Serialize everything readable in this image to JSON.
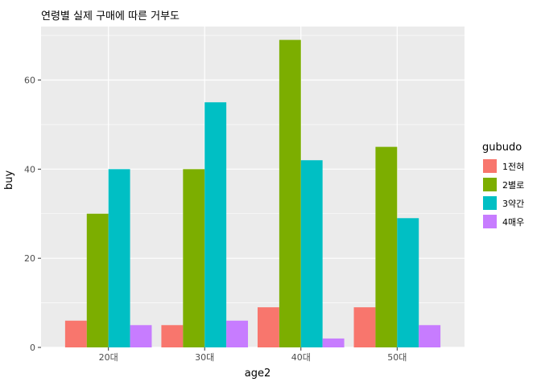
{
  "chart_data": {
    "type": "bar",
    "title": "연령별 실제 구매에 따른 거부도",
    "xlabel": "age2",
    "ylabel": "buy",
    "categories": [
      "20대",
      "30대",
      "40대",
      "50대"
    ],
    "series": [
      {
        "name": "1전혀",
        "color": "#F8766D",
        "values": [
          6,
          5,
          9,
          9
        ]
      },
      {
        "name": "2별로",
        "color": "#7CAE00",
        "values": [
          30,
          40,
          69,
          45
        ]
      },
      {
        "name": "3약간",
        "color": "#00BFC4",
        "values": [
          40,
          55,
          42,
          29
        ]
      },
      {
        "name": "4매우",
        "color": "#C77CFF",
        "values": [
          5,
          6,
          2,
          5
        ]
      }
    ],
    "ylim": [
      0,
      72
    ],
    "yticks": [
      0,
      20,
      40,
      60
    ],
    "grid": true,
    "legend": {
      "title": "gubudo",
      "position": "right"
    },
    "panel_background": "#EBEBEB"
  }
}
